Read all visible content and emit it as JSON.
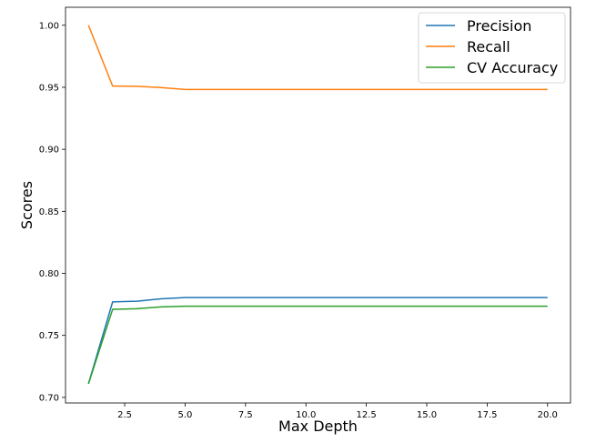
{
  "chart_data": {
    "type": "line",
    "xlabel": "Max Depth",
    "ylabel": "Scores",
    "xlim": [
      0.05,
      20.95
    ],
    "ylim": [
      0.6955,
      1.0145
    ],
    "xticks": [
      2.5,
      5.0,
      7.5,
      10.0,
      12.5,
      15.0,
      17.5,
      20.0
    ],
    "xtick_labels": [
      "2.5",
      "5.0",
      "7.5",
      "10.0",
      "12.5",
      "15.0",
      "17.5",
      "20.0"
    ],
    "yticks": [
      0.7,
      0.75,
      0.8,
      0.85,
      0.9,
      0.95,
      1.0
    ],
    "ytick_labels": [
      "0.70",
      "0.75",
      "0.80",
      "0.85",
      "0.90",
      "0.95",
      "1.00"
    ],
    "grid": false,
    "legend_position": "top-right",
    "x": [
      1,
      2,
      3,
      4,
      5,
      6,
      7,
      8,
      9,
      10,
      11,
      12,
      13,
      14,
      15,
      16,
      17,
      18,
      19,
      20
    ],
    "series": [
      {
        "name": "Precision",
        "color": "#1f77b4",
        "values": [
          0.711,
          0.777,
          0.7775,
          0.7795,
          0.7805,
          0.7805,
          0.7805,
          0.7805,
          0.7805,
          0.7805,
          0.7805,
          0.7805,
          0.7805,
          0.7805,
          0.7805,
          0.7805,
          0.7805,
          0.7805,
          0.7805,
          0.7805
        ]
      },
      {
        "name": "Recall",
        "color": "#ff7f0e",
        "values": [
          1.0,
          0.951,
          0.9508,
          0.9498,
          0.9482,
          0.9482,
          0.9482,
          0.9482,
          0.9482,
          0.9482,
          0.9482,
          0.9482,
          0.9482,
          0.9482,
          0.9482,
          0.9482,
          0.9482,
          0.9482,
          0.9482,
          0.9482
        ]
      },
      {
        "name": "CV Accuracy",
        "color": "#2ca02c",
        "values": [
          0.711,
          0.771,
          0.7715,
          0.773,
          0.7735,
          0.7735,
          0.7735,
          0.7735,
          0.7735,
          0.7735,
          0.7735,
          0.7735,
          0.7735,
          0.7735,
          0.7735,
          0.7735,
          0.7735,
          0.7735,
          0.7735,
          0.7735
        ]
      }
    ]
  }
}
